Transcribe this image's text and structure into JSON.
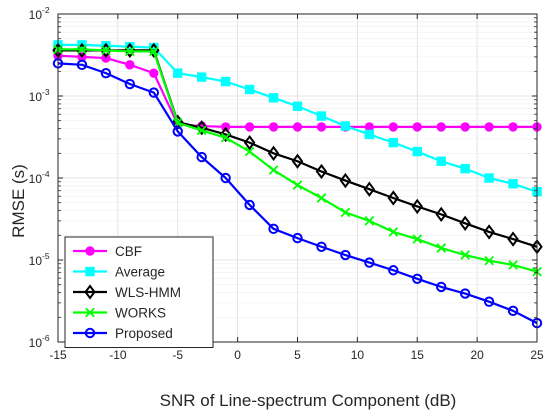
{
  "chart_data": {
    "type": "line",
    "xlabel": "SNR of Line-spectrum Component (dB)",
    "ylabel": "RMSE (s)",
    "xlim": [
      -15,
      25
    ],
    "ylim": [
      1e-06,
      0.01
    ],
    "yscale": "log",
    "grid": true,
    "legend_position": "bottom-left",
    "x_ticks": [
      "-15",
      "-10",
      "-5",
      "0",
      "5",
      "10",
      "15",
      "20",
      "25"
    ],
    "y_ticks": [
      {
        "base": "10",
        "exp": "-6"
      },
      {
        "base": "10",
        "exp": "-5"
      },
      {
        "base": "10",
        "exp": "-4"
      },
      {
        "base": "10",
        "exp": "-3"
      },
      {
        "base": "10",
        "exp": "-2"
      }
    ],
    "x": [
      -15,
      -13,
      -11,
      -9,
      -7,
      -5,
      -3,
      -1,
      1,
      3,
      5,
      7,
      9,
      11,
      13,
      15,
      17,
      19,
      21,
      23,
      25
    ],
    "series": [
      {
        "name": "CBF",
        "color": "#ff00ff",
        "marker": "circle-filled",
        "values": [
          0.0031,
          0.003,
          0.0029,
          0.0024,
          0.0019,
          0.00045,
          0.00043,
          0.00042,
          0.00042,
          0.00042,
          0.00042,
          0.00042,
          0.00042,
          0.00042,
          0.00042,
          0.00042,
          0.00042,
          0.00042,
          0.00042,
          0.00042,
          0.00042
        ]
      },
      {
        "name": "Average",
        "color": "#00ffff",
        "marker": "square-filled",
        "values": [
          0.0042,
          0.0042,
          0.0041,
          0.004,
          0.0039,
          0.0019,
          0.0017,
          0.0015,
          0.0012,
          0.00095,
          0.00075,
          0.00057,
          0.00043,
          0.00034,
          0.00027,
          0.00021,
          0.00016,
          0.00013,
          0.0001,
          8.5e-05,
          6.8e-05
        ]
      },
      {
        "name": "WLS-HMM",
        "color": "#000000",
        "marker": "diamond",
        "values": [
          0.0036,
          0.0036,
          0.0036,
          0.0036,
          0.0036,
          0.00048,
          0.00041,
          0.00034,
          0.00027,
          0.0002,
          0.00016,
          0.00012,
          9.3e-05,
          7.3e-05,
          5.7e-05,
          4.5e-05,
          3.6e-05,
          2.8e-05,
          2.2e-05,
          1.8e-05,
          1.45e-05
        ]
      },
      {
        "name": "WORKS",
        "color": "#00ff00",
        "marker": "x",
        "values": [
          0.0037,
          0.0037,
          0.0036,
          0.0035,
          0.0035,
          0.00047,
          0.00038,
          0.00031,
          0.00021,
          0.000125,
          8.2e-05,
          5.7e-05,
          3.8e-05,
          3e-05,
          2.2e-05,
          1.8e-05,
          1.4e-05,
          1.15e-05,
          9.8e-06,
          8.7e-06,
          7.2e-06
        ]
      },
      {
        "name": "Proposed",
        "color": "#0000ff",
        "marker": "circle-open",
        "values": [
          0.0025,
          0.0024,
          0.0019,
          0.0014,
          0.0011,
          0.00037,
          0.00018,
          0.0001,
          4.7e-05,
          2.4e-05,
          1.85e-05,
          1.45e-05,
          1.15e-05,
          9.3e-06,
          7.5e-06,
          5.9e-06,
          4.7e-06,
          3.9e-06,
          3.1e-06,
          2.4e-06,
          1.7e-06
        ]
      }
    ]
  }
}
